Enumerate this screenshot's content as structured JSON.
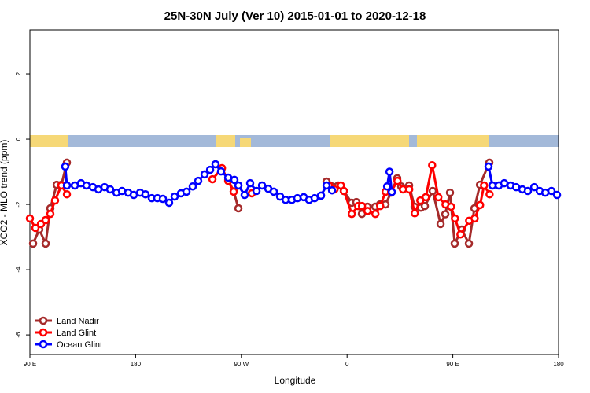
{
  "chart_data": {
    "type": "line",
    "title": "25N-30N July (Ver 10)   2015-01-01 to 2020-12-18",
    "xlabel": "Longitude",
    "ylabel": "XCO2 - MLO trend (ppm)",
    "xlim": [
      90,
      540
    ],
    "ylim": [
      -6.6,
      3.35
    ],
    "xticks": [
      {
        "value": 90,
        "label": "90 E"
      },
      180,
      {
        "value": 270,
        "label": "90 W"
      },
      {
        "value": 360,
        "label": "0"
      },
      {
        "value": 450,
        "label": "90 E"
      },
      {
        "value": 540,
        "label": "180"
      }
    ],
    "yticks": [
      -6,
      -4,
      -2,
      0,
      2
    ],
    "legend": "bottom-left",
    "series": [
      {
        "name": "Land Nadir",
        "color": "#a52a2a",
        "x": [
          92.7,
          98,
          103.4,
          107.4,
          112.8,
          116.8,
          121.5,
          null,
          258.8,
          263.5,
          267.5,
          null,
          342.5,
          352.5,
          357.2,
          363.9,
          367.9,
          372.6,
          377.3,
          384,
          388,
          392.7,
          397.4,
          402.7,
          406.1,
          412.8,
          417.5,
          422.8,
          426.2,
          432.9,
          439.6,
          443.6,
          447.6,
          451.6,
          457.6,
          463.7,
          468.4,
          473.1,
          481.1
        ],
        "values": [
          -3.2,
          -2.77,
          -3.2,
          -2.12,
          -1.4,
          -1.4,
          -0.72,
          null,
          -1.25,
          -1.6,
          -2.12,
          null,
          -1.3,
          -1.42,
          -1.59,
          -1.95,
          -1.93,
          -2.29,
          -2.07,
          -2.07,
          -2.0,
          -2.0,
          -1.64,
          -1.2,
          -1.45,
          -1.42,
          -2.07,
          -2.1,
          -2.05,
          -1.59,
          -2.6,
          -2.3,
          -1.64,
          -3.2,
          -2.77,
          -3.2,
          -2.12,
          -1.4,
          -0.72
        ]
      },
      {
        "name": "Land Glint",
        "color": "#ff0000",
        "x": [
          90,
          94.7,
          99.4,
          103.4,
          107.4,
          111.4,
          116.8,
          121.5,
          null,
          245.4,
          253.5,
          258.8,
          263.5,
          null,
          278.9,
          null,
          344.6,
          349.3,
          354.7,
          357.3,
          364,
          369.4,
          372.7,
          377.4,
          384.1,
          388.2,
          392.8,
          397.5,
          402.9,
          407.6,
          412.9,
          417.6,
          422.3,
          427,
          432.4,
          437.7,
          443.8,
          448.5,
          451.8,
          456.5,
          463.9,
          468.6,
          473.2,
          476.6,
          481.3
        ],
        "values": [
          -2.43,
          -2.72,
          -2.6,
          -2.48,
          -2.29,
          -1.88,
          -1.42,
          -1.69,
          null,
          -1.23,
          -0.89,
          -1.28,
          -1.61,
          null,
          -1.66,
          null,
          -1.42,
          -1.54,
          -1.42,
          -1.59,
          -2.29,
          -2.05,
          -2.05,
          -2.2,
          -2.29,
          -2.05,
          -1.61,
          -1.61,
          -1.28,
          -1.54,
          -1.54,
          -2.27,
          -1.88,
          -1.78,
          -0.8,
          -1.78,
          -2.0,
          -2.07,
          -2.43,
          -2.92,
          -2.5,
          -2.43,
          -2.02,
          -1.42,
          -1.69
        ]
      },
      {
        "name": "Ocean Glint",
        "color": "#0000ff",
        "x": [
          120.1,
          121.5,
          128.2,
          133.5,
          138.2,
          143.6,
          148.3,
          153.6,
          158.3,
          163.7,
          168.4,
          173.7,
          178.4,
          183.8,
          188.4,
          193.8,
          198.5,
          203.2,
          208.5,
          213.2,
          218.6,
          223.3,
          228.6,
          233.3,
          238.7,
          243.4,
          248,
          252.7,
          258.8,
          264.1,
          267.5,
          272.8,
          277.5,
          282.9,
          287.6,
          292.9,
          297.6,
          303,
          307.7,
          313,
          317.7,
          323.1,
          327.7,
          332.4,
          337.8,
          342.5,
          347.2,
          null,
          394.1,
          396.1,
          398.1,
          null,
          480.4,
          483.8,
          489.1,
          493.8,
          499.2,
          503.9,
          509.2,
          513.9,
          519.3,
          524,
          528.7,
          534,
          538.7
        ],
        "values": [
          -0.84,
          -1.42,
          -1.42,
          -1.35,
          -1.42,
          -1.47,
          -1.54,
          -1.47,
          -1.54,
          -1.64,
          -1.59,
          -1.64,
          -1.71,
          -1.64,
          -1.69,
          -1.81,
          -1.81,
          -1.83,
          -1.95,
          -1.76,
          -1.66,
          -1.61,
          -1.45,
          -1.28,
          -1.08,
          -0.94,
          -0.77,
          -0.99,
          -1.18,
          -1.25,
          -1.42,
          -1.71,
          -1.35,
          -1.59,
          -1.42,
          -1.52,
          -1.61,
          -1.76,
          -1.86,
          -1.86,
          -1.81,
          -1.78,
          -1.86,
          -1.81,
          -1.73,
          -1.42,
          -1.57,
          null,
          -1.45,
          -1.0,
          -1.62,
          null,
          -0.84,
          -1.42,
          -1.42,
          -1.35,
          -1.42,
          -1.47,
          -1.54,
          -1.59,
          -1.47,
          -1.59,
          -1.64,
          -1.59,
          -1.71
        ]
      }
    ]
  }
}
